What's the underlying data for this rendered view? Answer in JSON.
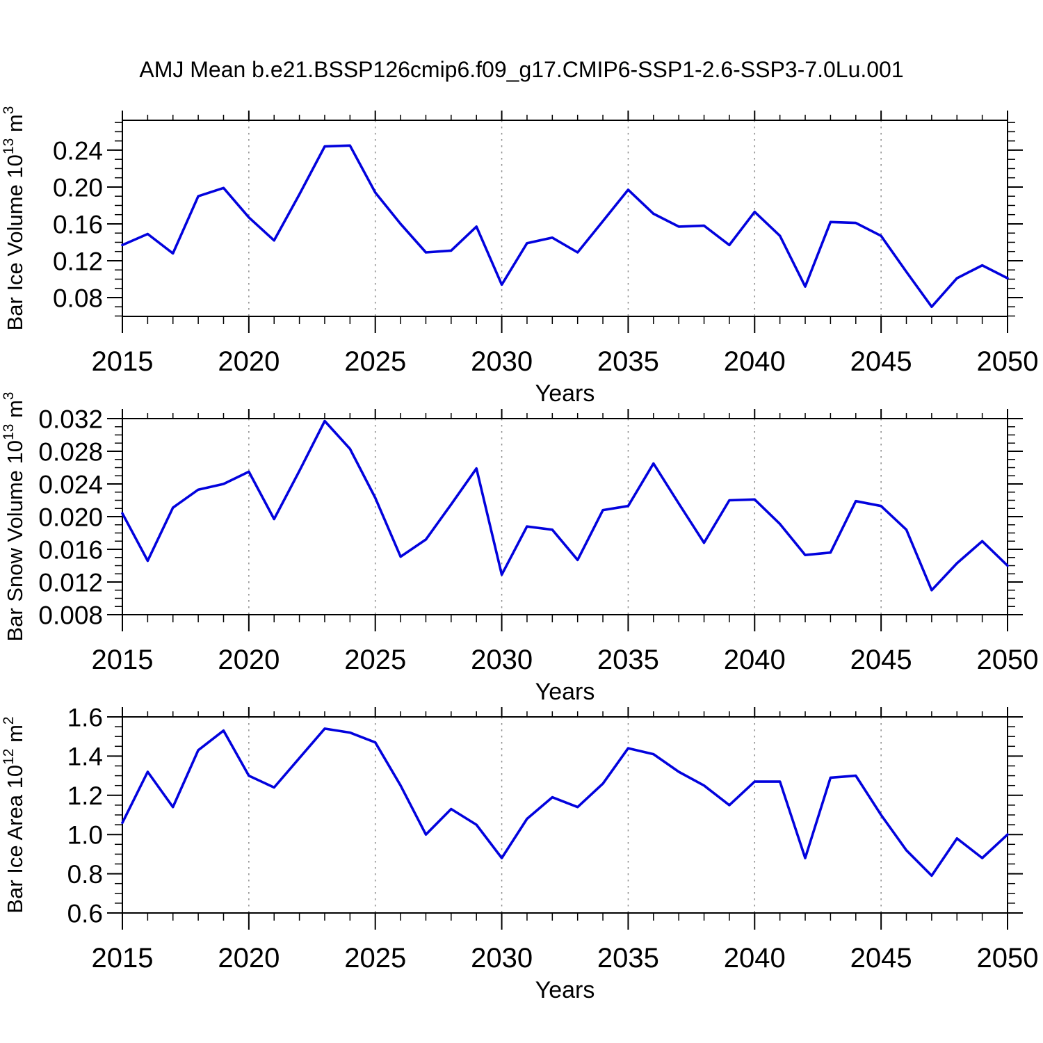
{
  "title": "AMJ Mean b.e21.BSSP126cmip6.f09_g17.CMIP6-SSP1-2.6-SSP3-7.0Lu.001",
  "colors": {
    "line": "#0202dd",
    "grid": "#8c8c8c",
    "axis": "#000000",
    "background": "#ffffff",
    "text": "#000000"
  },
  "years": [
    2015,
    2016,
    2017,
    2018,
    2019,
    2020,
    2021,
    2022,
    2023,
    2024,
    2025,
    2026,
    2027,
    2028,
    2029,
    2030,
    2031,
    2032,
    2033,
    2034,
    2035,
    2036,
    2037,
    2038,
    2039,
    2040,
    2041,
    2042,
    2043,
    2044,
    2045,
    2046,
    2047,
    2048,
    2049,
    2050
  ],
  "x_axis": {
    "label": "Years",
    "xlim": [
      2015,
      2050
    ],
    "major_ticks": [
      2015,
      2020,
      2025,
      2030,
      2035,
      2040,
      2045,
      2050
    ],
    "major_tick_labels": [
      "2015",
      "2020",
      "2025",
      "2030",
      "2035",
      "2040",
      "2045",
      "2050"
    ],
    "minor_step": 1,
    "grid_years": [
      2020,
      2025,
      2030,
      2035,
      2040,
      2045
    ]
  },
  "chart_data": [
    {
      "type": "line",
      "name": "bar-ice-volume",
      "ylabel": "Bar Ice Volume 10^13 m^3",
      "ylabel_parts": [
        {
          "t": "Bar Ice Volume 10",
          "sup": false
        },
        {
          "t": "13",
          "sup": true
        },
        {
          "t": " m",
          "sup": false
        },
        {
          "t": "3",
          "sup": true
        }
      ],
      "xlabel": "Years",
      "ylim": [
        0.0596,
        0.2724
      ],
      "yticks": [
        0.08,
        0.12,
        0.16,
        0.2,
        0.24
      ],
      "ytick_labels": [
        "0.08",
        "0.12",
        "0.16",
        "0.20",
        "0.24"
      ],
      "yminor_step": 0.01,
      "values": [
        0.137,
        0.149,
        0.128,
        0.19,
        0.199,
        0.167,
        0.142,
        0.192,
        0.244,
        0.245,
        0.194,
        0.16,
        0.129,
        0.131,
        0.157,
        0.094,
        0.139,
        0.145,
        0.129,
        0.163,
        0.197,
        0.171,
        0.157,
        0.158,
        0.137,
        0.173,
        0.147,
        0.092,
        0.162,
        0.161,
        0.147,
        0.108,
        0.07,
        0.101,
        0.115,
        0.101
      ]
    },
    {
      "type": "line",
      "name": "bar-snow-volume",
      "ylabel": "Bar Snow Volume 10^13 m^3",
      "ylabel_parts": [
        {
          "t": "Bar Snow Volume 10",
          "sup": false
        },
        {
          "t": "13",
          "sup": true
        },
        {
          "t": " m",
          "sup": false
        },
        {
          "t": "3",
          "sup": true
        }
      ],
      "xlabel": "Years",
      "ylim": [
        0.008,
        0.032
      ],
      "yticks": [
        0.008,
        0.012,
        0.016,
        0.02,
        0.024,
        0.028,
        0.032
      ],
      "ytick_labels": [
        "0.008",
        "0.012",
        "0.016",
        "0.020",
        "0.024",
        "0.028",
        "0.032"
      ],
      "yminor_step": 0.001,
      "values": [
        0.0204,
        0.0146,
        0.0211,
        0.0233,
        0.024,
        0.0255,
        0.0197,
        0.0256,
        0.0317,
        0.0283,
        0.0223,
        0.0151,
        0.0172,
        0.0215,
        0.0259,
        0.0129,
        0.0188,
        0.0184,
        0.0147,
        0.0208,
        0.0213,
        0.0265,
        0.0216,
        0.0168,
        0.022,
        0.0221,
        0.0191,
        0.0153,
        0.0156,
        0.0219,
        0.0213,
        0.0184,
        0.011,
        0.0143,
        0.017,
        0.014
      ]
    },
    {
      "type": "line",
      "name": "bar-ice-area",
      "ylabel": "Bar Ice Area 10^12 m^2",
      "ylabel_parts": [
        {
          "t": "Bar Ice Area 10",
          "sup": false
        },
        {
          "t": "12",
          "sup": true
        },
        {
          "t": " m",
          "sup": false
        },
        {
          "t": "2",
          "sup": true
        }
      ],
      "xlabel": "Years",
      "ylim": [
        0.6,
        1.6
      ],
      "yticks": [
        0.6,
        0.8,
        1.0,
        1.2,
        1.4,
        1.6
      ],
      "ytick_labels": [
        "0.6",
        "0.8",
        "1.0",
        "1.2",
        "1.4",
        "1.6"
      ],
      "yminor_step": 0.05,
      "values": [
        1.06,
        1.32,
        1.14,
        1.43,
        1.53,
        1.3,
        1.24,
        1.39,
        1.54,
        1.52,
        1.47,
        1.25,
        1.0,
        1.13,
        1.05,
        0.88,
        1.08,
        1.19,
        1.14,
        1.26,
        1.44,
        1.41,
        1.32,
        1.25,
        1.15,
        1.27,
        1.27,
        0.88,
        1.29,
        1.3,
        1.1,
        0.92,
        0.79,
        0.98,
        0.88,
        1.0
      ]
    }
  ]
}
